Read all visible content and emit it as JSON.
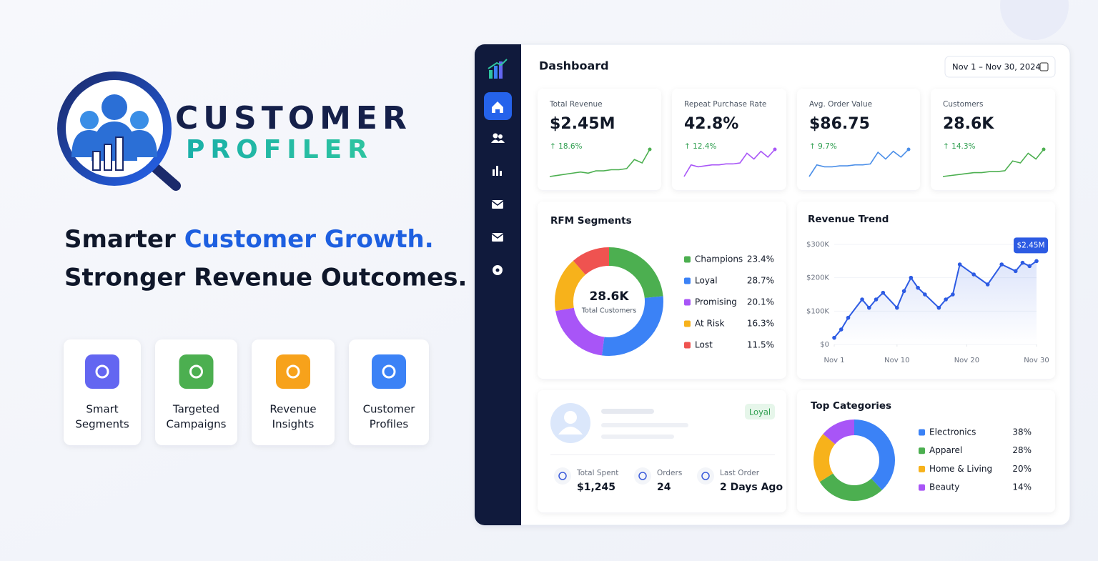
{
  "brand": {
    "name_line1": "CUSTOMER",
    "name_line2": "PROFILER"
  },
  "headline": {
    "line1_start": "Smarter",
    "line1_accent": "Customer Growth.",
    "line2": "Stronger Revenue Outcomes."
  },
  "features": [
    {
      "lines": [
        "Smart",
        "Segments"
      ],
      "color": "#6366f1"
    },
    {
      "lines": [
        "Targeted",
        "Campaigns"
      ],
      "color": "#4caf50"
    },
    {
      "lines": [
        "Revenue",
        "Insights"
      ],
      "color": "#f7a21b"
    },
    {
      "lines": [
        "Customer",
        "Profiles"
      ],
      "color": "#3b82f6"
    }
  ],
  "dashboard": {
    "title": "Dashboard",
    "date_range": "Nov 1 – Nov 30, 2024",
    "kpis": [
      {
        "label": "Total Revenue",
        "value": "$2.45M",
        "change": "↑ 18.6%",
        "sparkline": {
          "color": "#4caf50",
          "values": [
            10,
            11,
            12,
            13,
            14,
            13,
            15,
            15,
            16,
            16,
            17,
            25,
            22,
            34
          ]
        }
      },
      {
        "label": "Repeat Purchase Rate",
        "value": "42.8%",
        "change": "↑ 12.4%",
        "sparkline": {
          "color": "#a855f7",
          "values": [
            10,
            22,
            20,
            21,
            22,
            22,
            23,
            23,
            24,
            34,
            28,
            36,
            30,
            38
          ]
        }
      },
      {
        "label": "Avg. Order Value",
        "value": "$86.75",
        "change": "↑ 9.7%",
        "sparkline": {
          "color": "#4a8ee8",
          "values": [
            10,
            22,
            20,
            20,
            21,
            21,
            22,
            22,
            23,
            35,
            28,
            36,
            30,
            38
          ]
        }
      },
      {
        "label": "Customers",
        "value": "28.6K",
        "change": "↑ 14.3%",
        "sparkline": {
          "color": "#4caf50",
          "values": [
            10,
            11,
            12,
            13,
            14,
            14,
            15,
            15,
            16,
            26,
            24,
            34,
            28,
            38
          ]
        }
      }
    ],
    "rfm": {
      "type": "donut",
      "title": "RFM Segments",
      "center_value": "28.6K",
      "center_label": "Total Customers",
      "categories": [
        "Champions",
        "Loyal",
        "Promising",
        "At Risk",
        "Lost"
      ],
      "values": [
        23.4,
        28.7,
        20.1,
        16.3,
        11.5
      ],
      "value_labels": [
        "23.4%",
        "28.7%",
        "20.1%",
        "16.3%",
        "11.5%"
      ],
      "colors": [
        "#4caf50",
        "#3b82f6",
        "#a855f7",
        "#f7b21b",
        "#ef5350"
      ]
    },
    "revenue_trend": {
      "type": "line",
      "title": "Revenue Trend",
      "color": "#2d5be3",
      "x": [
        1,
        2,
        3,
        5,
        6,
        7,
        8,
        10,
        11,
        12,
        13,
        14,
        16,
        17,
        18,
        19,
        21,
        23,
        25,
        27,
        28,
        29,
        30
      ],
      "values": [
        20000,
        45000,
        80000,
        135000,
        110000,
        135000,
        155000,
        110000,
        160000,
        200000,
        170000,
        150000,
        110000,
        135000,
        150000,
        240000,
        210000,
        180000,
        240000,
        220000,
        245000,
        235000,
        250000
      ],
      "xlim": [
        1,
        30
      ],
      "xticks": [
        {
          "value": 1,
          "label": "Nov 1"
        },
        {
          "value": 10,
          "label": "Nov 10"
        },
        {
          "value": 20,
          "label": "Nov 20"
        },
        {
          "value": 30,
          "label": "Nov 30"
        }
      ],
      "ylim": [
        0,
        300000
      ],
      "yticks": [
        {
          "value": 0,
          "label": "$0"
        },
        {
          "value": 100000,
          "label": "$100K"
        },
        {
          "value": 200000,
          "label": "$200K"
        },
        {
          "value": 300000,
          "label": "$300K"
        }
      ],
      "callout": "$2.45M"
    },
    "profile": {
      "badge": "Loyal",
      "stats": [
        {
          "label": "Total Spent",
          "value": "$1,245"
        },
        {
          "label": "Orders",
          "value": "24"
        },
        {
          "label": "Last Order",
          "value": "2 Days Ago"
        }
      ]
    },
    "top_categories": {
      "type": "donut",
      "title": "Top Categories",
      "categories": [
        "Electronics",
        "Apparel",
        "Home & Living",
        "Beauty"
      ],
      "values": [
        38,
        28,
        20,
        14
      ],
      "value_labels": [
        "38%",
        "28%",
        "20%",
        "14%"
      ],
      "colors": [
        "#3b82f6",
        "#4caf50",
        "#f7b21b",
        "#a855f7"
      ]
    }
  }
}
